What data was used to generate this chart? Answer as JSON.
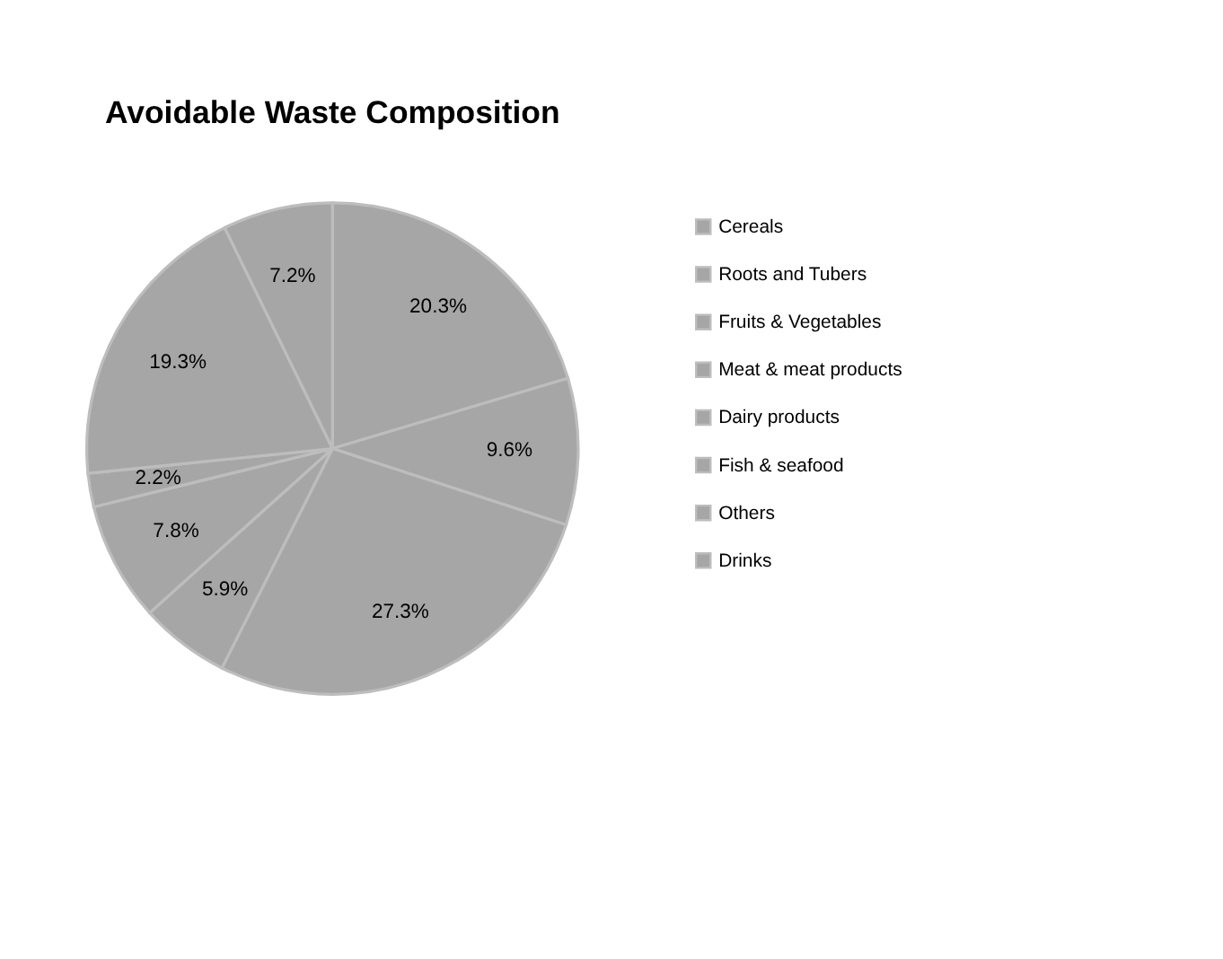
{
  "chart_data": {
    "type": "pie",
    "title": "Avoidable Waste Composition",
    "categories": [
      "Cereals",
      "Roots and Tubers",
      "Fruits & Vegetables",
      "Meat & meat products",
      "Dairy products",
      "Fish & seafood",
      "Others",
      "Drinks"
    ],
    "values": [
      20.3,
      9.6,
      27.3,
      5.9,
      7.8,
      2.2,
      19.3,
      7.2
    ],
    "value_labels": [
      "20.3%",
      "9.6%",
      "27.3%",
      "5.9%",
      "7.8%",
      "2.2%",
      "19.3%",
      "7.2%"
    ],
    "colors": [
      "#a6a6a6",
      "#a6a6a6",
      "#a6a6a6",
      "#a6a6a6",
      "#a6a6a6",
      "#a6a6a6",
      "#a6a6a6",
      "#a6a6a6"
    ],
    "legend": "right"
  }
}
